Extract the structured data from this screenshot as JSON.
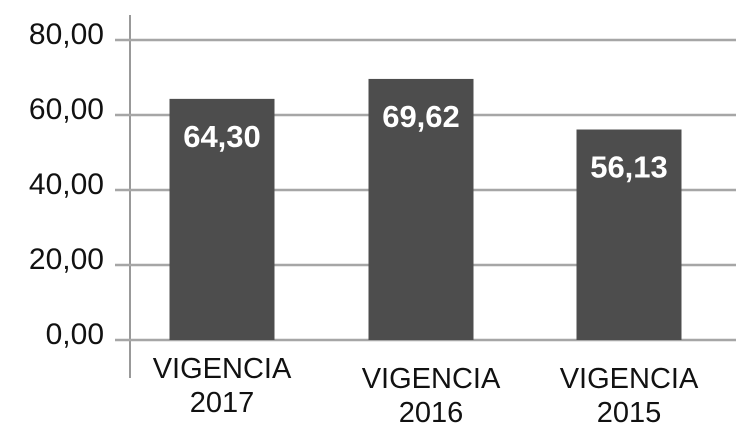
{
  "chart_data": {
    "type": "bar",
    "categories": [
      "VIGENCIA 2017",
      "VIGENCIA 2016",
      "VIGENCIA 2015"
    ],
    "values": [
      64.3,
      69.62,
      56.13
    ],
    "value_labels": [
      "64,30",
      "69,62",
      "56,13"
    ],
    "color": "#4d4d4d",
    "ylim": [
      0,
      80
    ],
    "yticks": [
      {
        "value": 0,
        "label": "0,00"
      },
      {
        "value": 20,
        "label": "20,00"
      },
      {
        "value": 40,
        "label": "40,00"
      },
      {
        "value": 60,
        "label": "60,00"
      },
      {
        "value": 80,
        "label": "80,00"
      }
    ],
    "grid": true
  }
}
